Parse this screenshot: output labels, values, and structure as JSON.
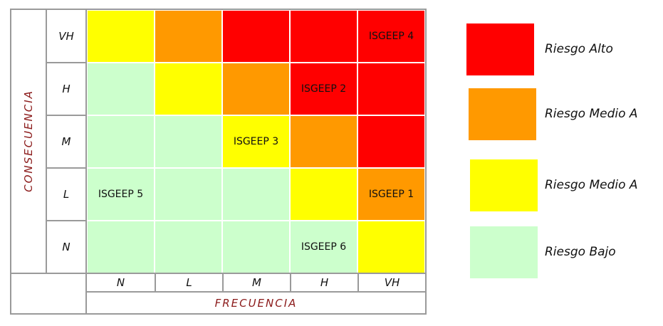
{
  "axes": {
    "y_title": "CONSECUENCIA",
    "x_title": "FRECUENCIA",
    "rows": [
      "VH",
      "H",
      "M",
      "L",
      "N"
    ],
    "cols": [
      "N",
      "L",
      "M",
      "H",
      "VH"
    ]
  },
  "colors": {
    "alto": "#ff0000",
    "medio_alto": "#ff9900",
    "medio": "#ffff00",
    "bajo": "#ccffcc"
  },
  "matrix": [
    [
      "medio",
      "medio_alto",
      "alto",
      "alto",
      "alto"
    ],
    [
      "bajo",
      "medio",
      "medio_alto",
      "alto",
      "alto"
    ],
    [
      "bajo",
      "bajo",
      "medio",
      "medio_alto",
      "alto"
    ],
    [
      "bajo",
      "bajo",
      "bajo",
      "medio",
      "medio_alto"
    ],
    [
      "bajo",
      "bajo",
      "bajo",
      "bajo",
      "medio"
    ]
  ],
  "cell_labels": [
    [
      "",
      "",
      "",
      "",
      "ISGEEP 4"
    ],
    [
      "",
      "",
      "",
      "ISGEEP 2",
      ""
    ],
    [
      "",
      "",
      "ISGEEP 3",
      "",
      ""
    ],
    [
      "ISGEEP 5",
      "",
      "",
      "",
      "ISGEEP 1"
    ],
    [
      "",
      "",
      "",
      "ISGEEP 6",
      ""
    ]
  ],
  "legend": [
    {
      "key": "alto",
      "label": "Riesgo Alto"
    },
    {
      "key": "medio_alto",
      "label": "Riesgo  Medio A"
    },
    {
      "key": "medio",
      "label": "Riesgo  Medio A"
    },
    {
      "key": "bajo",
      "label": "Riesgo Bajo"
    }
  ]
}
